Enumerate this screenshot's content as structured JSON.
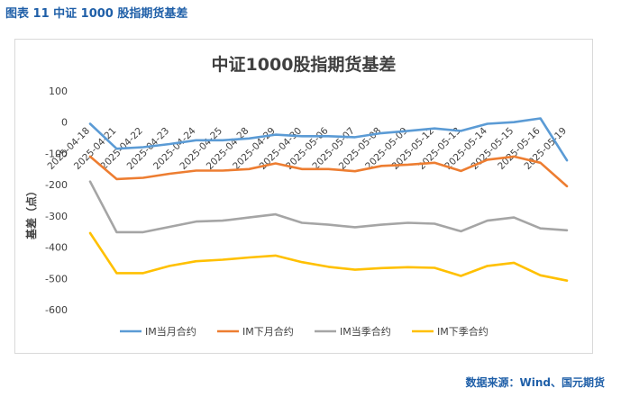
{
  "caption": "图表 11  中证 1000 股指期货基差",
  "source": "数据来源：Wind、国元期货",
  "chart_data": {
    "type": "line",
    "title": "中证1000股指期货基差",
    "xlabel": "",
    "ylabel": "基差（点）",
    "ylim": [
      -600,
      100
    ],
    "yticks": [
      100,
      0,
      -100,
      -200,
      -300,
      -400,
      -500,
      -600
    ],
    "grid": false,
    "legend_position": "bottom",
    "categories": [
      "2025-04-18",
      "2025-04-21",
      "2025-04-22",
      "2025-04-23",
      "2025-04-24",
      "2025-04-25",
      "2025-04-28",
      "2025-04-29",
      "2025-04-30",
      "2025-05-06",
      "2025-05-07",
      "2025-05-08",
      "2025-05-09",
      "2025-05-12",
      "2025-05-13",
      "2025-05-14",
      "2025-05-15",
      "2025-05-16",
      "2025-05-19"
    ],
    "series": [
      {
        "name": "IM当月合约",
        "color": "#5b9bd5",
        "values": [
          -5,
          -85,
          -80,
          -70,
          -58,
          -58,
          -52,
          -40,
          -45,
          -45,
          -48,
          -35,
          -28,
          -20,
          -28,
          -5,
          0,
          12,
          -122
        ]
      },
      {
        "name": "IM下月合约",
        "color": "#ed7d31",
        "values": [
          -110,
          -182,
          -178,
          -165,
          -155,
          -155,
          -150,
          -132,
          -150,
          -150,
          -157,
          -140,
          -136,
          -130,
          -156,
          -120,
          -110,
          -130,
          -205
        ]
      },
      {
        "name": "IM当季合约",
        "color": "#a5a5a5",
        "values": [
          -190,
          -352,
          -352,
          -335,
          -318,
          -315,
          -305,
          -295,
          -322,
          -328,
          -336,
          -328,
          -322,
          -325,
          -349,
          -315,
          -305,
          -340,
          -346
        ]
      },
      {
        "name": "IM下季合约",
        "color": "#ffc000",
        "values": [
          -355,
          -483,
          -483,
          -460,
          -445,
          -440,
          -433,
          -427,
          -448,
          -463,
          -472,
          -467,
          -464,
          -466,
          -492,
          -460,
          -450,
          -490,
          -507
        ]
      }
    ]
  }
}
